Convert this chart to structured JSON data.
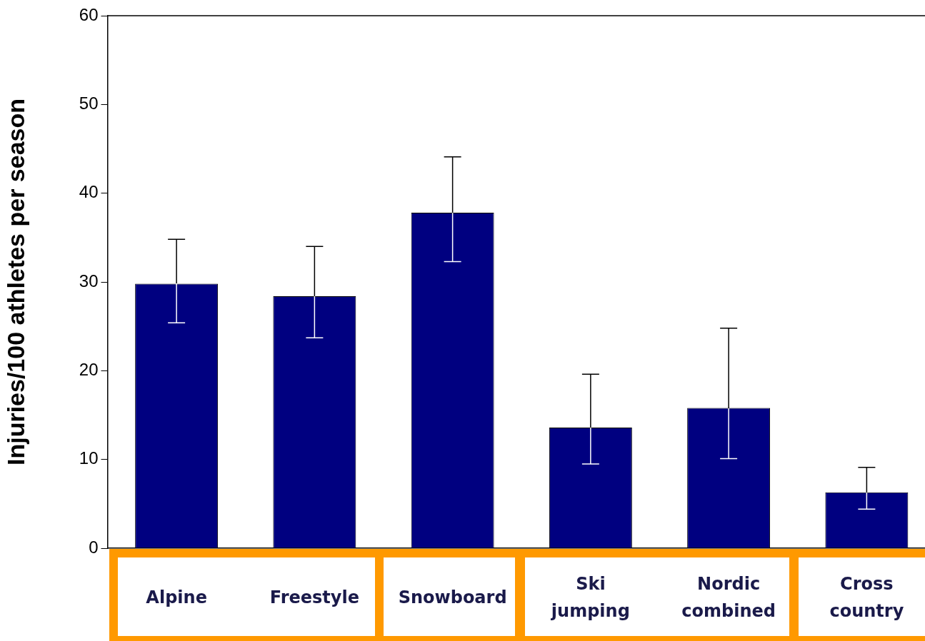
{
  "chart_data": {
    "type": "bar",
    "ylabel": "Injuries/100 athletes per season",
    "categories": [
      "Alpine",
      "Freestyle",
      "Snowboard",
      "Ski jumping",
      "Nordic combined",
      "Cross country"
    ],
    "values": [
      29.8,
      28.4,
      37.8,
      13.6,
      15.8,
      6.3
    ],
    "errors": [
      [
        25.4,
        34.8
      ],
      [
        23.7,
        34.0
      ],
      [
        32.3,
        44.1
      ],
      [
        9.5,
        19.6
      ],
      [
        10.1,
        24.8
      ],
      [
        4.4,
        9.1
      ]
    ],
    "color": "#000080",
    "ylim": [
      0,
      60
    ],
    "yticks": [
      0,
      10,
      20,
      30,
      40,
      50,
      60
    ],
    "grid": false
  }
}
